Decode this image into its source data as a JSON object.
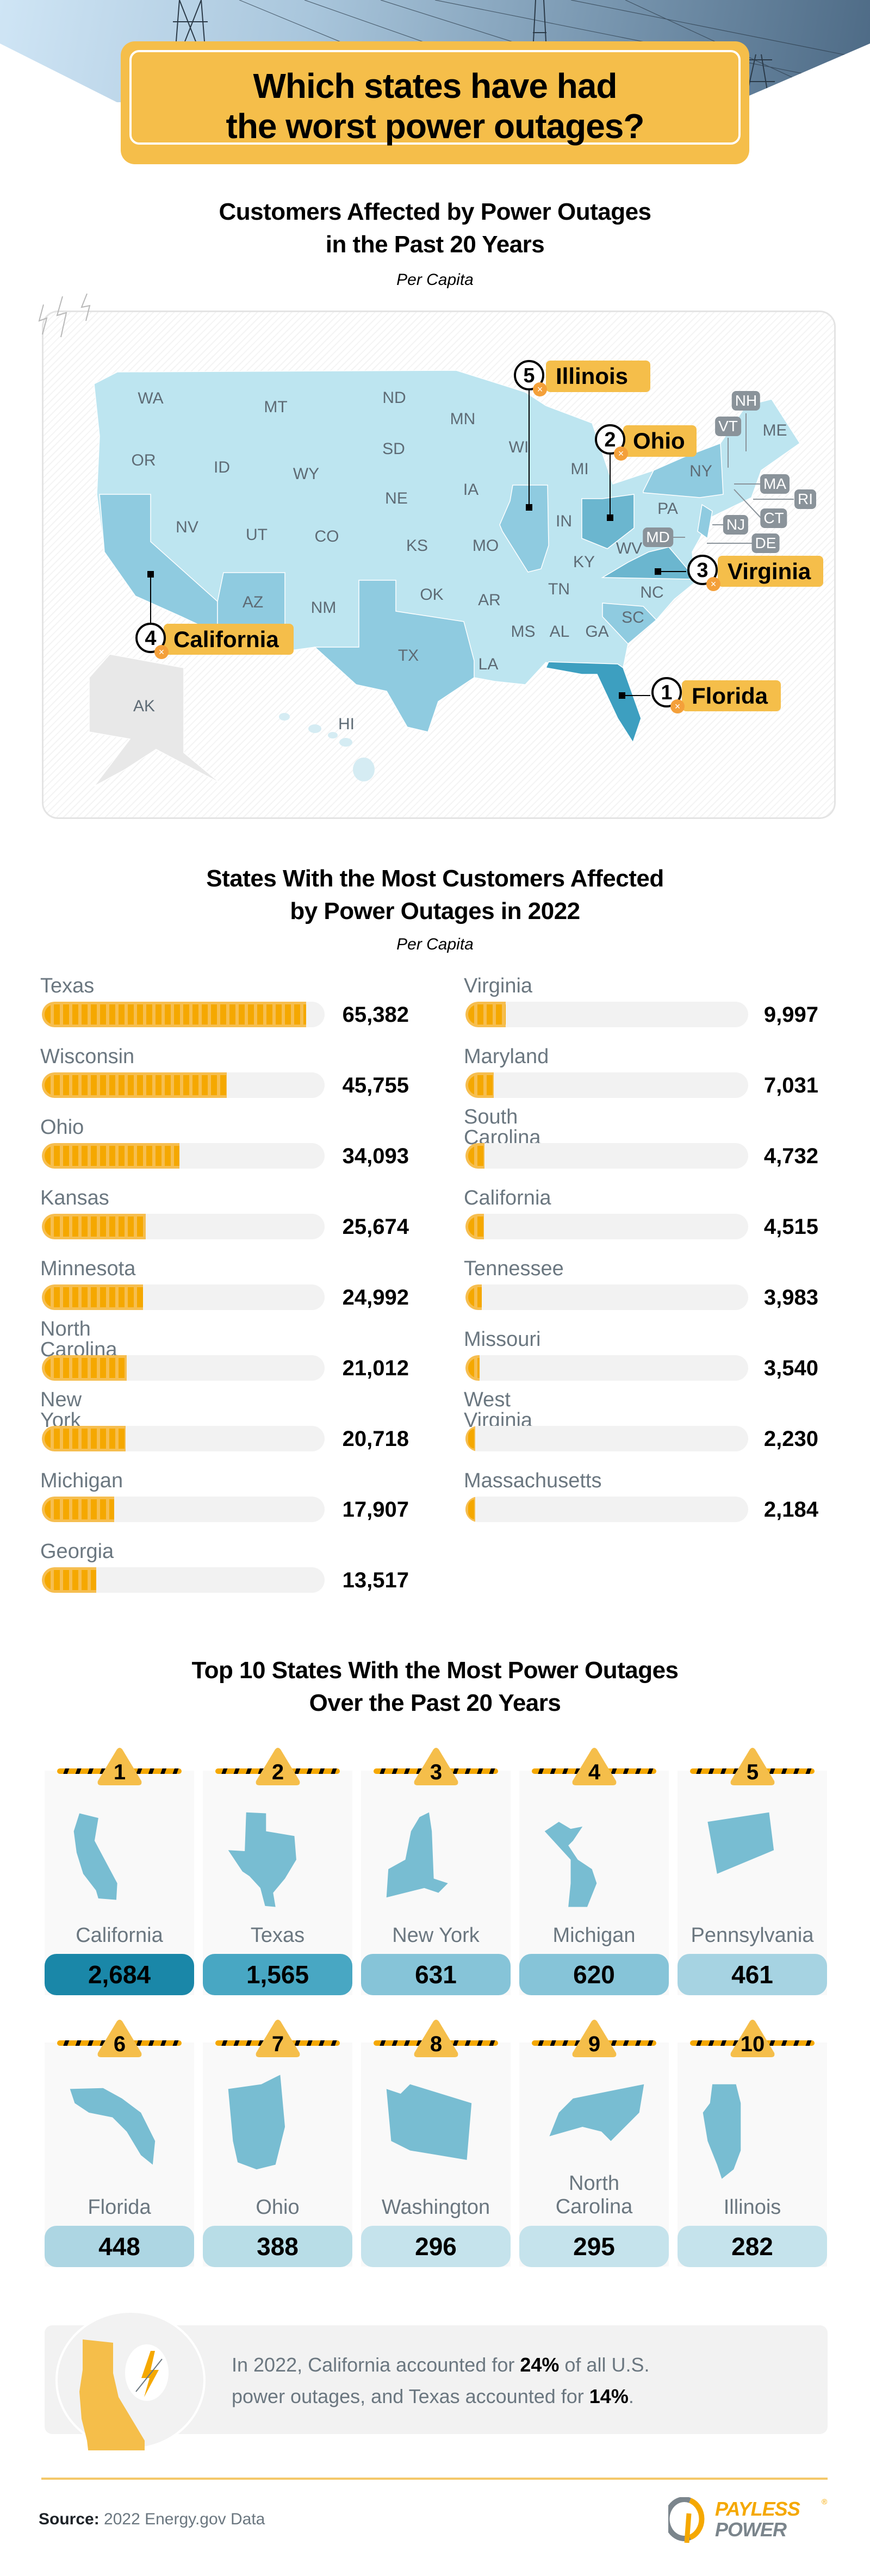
{
  "header": {
    "title_line1": "Which states have had",
    "title_line2": "the worst power outages?"
  },
  "map_section": {
    "title_line1": "Customers Affected by Power Outages",
    "title_line2": "in the Past 20 Years",
    "subtitle": "Per Capita",
    "state_labels": [
      "WA",
      "MT",
      "ND",
      "MN",
      "OR",
      "ID",
      "WY",
      "SD",
      "WI",
      "MI",
      "NY",
      "ME",
      "NE",
      "IA",
      "PA",
      "IN",
      "NV",
      "UT",
      "CO",
      "KS",
      "MO",
      "WV",
      "KY",
      "OK",
      "AR",
      "TN",
      "NC",
      "AZ",
      "NM",
      "SC",
      "MS",
      "AL",
      "GA",
      "TX",
      "LA",
      "AK",
      "HI"
    ],
    "small_state_labels": [
      "NH",
      "VT",
      "MA",
      "RI",
      "CT",
      "NJ",
      "DE",
      "MD"
    ],
    "callouts": [
      {
        "rank": "1",
        "name": "Florida"
      },
      {
        "rank": "2",
        "name": "Ohio"
      },
      {
        "rank": "3",
        "name": "Virginia"
      },
      {
        "rank": "4",
        "name": "California"
      },
      {
        "rank": "5",
        "name": "Illinois"
      }
    ],
    "colors": {
      "base": "#bde5f0",
      "medium": "#8fcbe0",
      "dark": "#6bb6cf",
      "darkest": "#3d9fc0",
      "alaska": "#e8e8e8"
    }
  },
  "bars_section": {
    "title_line1": "States With the Most Customers Affected",
    "title_line2": "by Power Outages in 2022",
    "subtitle": "Per Capita",
    "scale_max": 70000,
    "left": [
      {
        "state": "Texas",
        "value": "65,382"
      },
      {
        "state": "Wisconsin",
        "value": "45,755"
      },
      {
        "state": "Ohio",
        "value": "34,093"
      },
      {
        "state": "Kansas",
        "value": "25,674"
      },
      {
        "state": "Minnesota",
        "value": "24,992"
      },
      {
        "state": "North Carolina",
        "value": "21,012"
      },
      {
        "state": "New York",
        "value": "20,718"
      },
      {
        "state": "Michigan",
        "value": "17,907"
      },
      {
        "state": "Georgia",
        "value": "13,517"
      }
    ],
    "right": [
      {
        "state": "Virginia",
        "value": "9,997"
      },
      {
        "state": "Maryland",
        "value": "7,031"
      },
      {
        "state": "South Carolina",
        "value": "4,732"
      },
      {
        "state": "California",
        "value": "4,515"
      },
      {
        "state": "Tennessee",
        "value": "3,983"
      },
      {
        "state": "Missouri",
        "value": "3,540"
      },
      {
        "state": "West Virginia",
        "value": "2,230"
      },
      {
        "state": "Massachusetts",
        "value": "2,184"
      }
    ]
  },
  "top10": {
    "title_line1": "Top 10 States With the Most Power Outages",
    "title_line2": "Over the Past 20 Years",
    "items": [
      {
        "rank": "1",
        "state": "California",
        "count": "2,684",
        "color": "#1a87a8"
      },
      {
        "rank": "2",
        "state": "Texas",
        "count": "1,565",
        "color": "#48a7c3"
      },
      {
        "rank": "3",
        "state": "New York",
        "count": "631",
        "color": "#86c4d8"
      },
      {
        "rank": "4",
        "state": "Michigan",
        "count": "620",
        "color": "#86c4d8"
      },
      {
        "rank": "5",
        "state": "Pennsylvania",
        "count": "461",
        "color": "#a6d3e2"
      },
      {
        "rank": "6",
        "state": "Florida",
        "count": "448",
        "color": "#add6e3"
      },
      {
        "rank": "7",
        "state": "Ohio",
        "count": "388",
        "color": "#b8dde7"
      },
      {
        "rank": "8",
        "state": "Washington",
        "count": "296",
        "color": "#c5e3ec"
      },
      {
        "rank": "9",
        "state": "North Carolina",
        "count": "295",
        "color": "#c5e3ec"
      },
      {
        "rank": "10",
        "state": "Illinois",
        "count": "282",
        "color": "#c5e3ec"
      }
    ]
  },
  "fact": {
    "line1_a": "In 2022, California accounted for ",
    "line1_b": "24%",
    "line1_c": " of all U.S.",
    "line2_a": "power outages, and Texas accounted for ",
    "line2_b": "14%",
    "line2_c": "."
  },
  "footer": {
    "source_label": "Source:",
    "source_text": " 2022 Energy.gov Data",
    "logo_line1": "PAYLESS",
    "logo_line2": "POWER",
    "logo_mark": "®"
  },
  "colors": {
    "accent_yellow": "#f5be4a",
    "bar_orange": "#f5a800",
    "map_blue": "#78bdd2",
    "text_gray": "#6b7780"
  }
}
